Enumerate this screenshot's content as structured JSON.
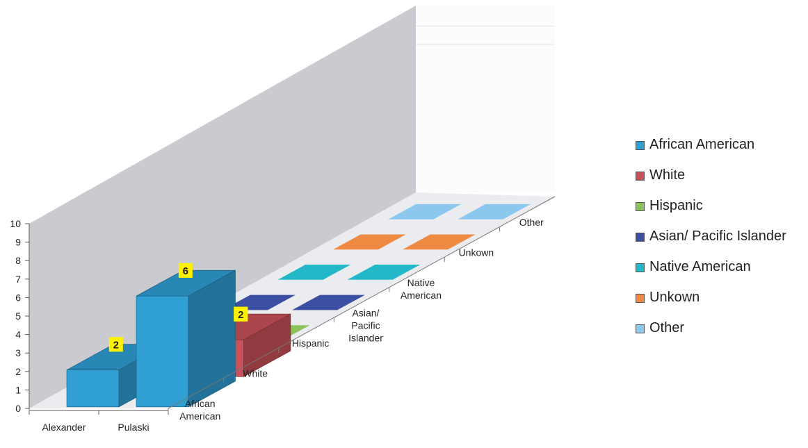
{
  "chart_data": {
    "type": "bar",
    "subtype": "3d-column",
    "title": "",
    "xlabel": "",
    "ylabel": "",
    "ylim": [
      0,
      10
    ],
    "yticks": [
      0,
      1,
      2,
      3,
      4,
      5,
      6,
      7,
      8,
      9,
      10
    ],
    "categories": [
      "Alexander",
      "Pulaski"
    ],
    "series": [
      {
        "name": "African American",
        "color": "#2f9fd4",
        "values": [
          2,
          6
        ],
        "axis_label": "African American"
      },
      {
        "name": "White",
        "color": "#c9525a",
        "values": [
          null,
          2
        ],
        "axis_label": "White"
      },
      {
        "name": "Hispanic",
        "color": "#8bc35a",
        "values": [
          null,
          null
        ],
        "axis_label": "Hispanic"
      },
      {
        "name": "Asian/ Pacific Islander",
        "color": "#3d4fa2",
        "values": [
          null,
          null
        ],
        "axis_label": "Asian/ Pacific Islander"
      },
      {
        "name": "Native American",
        "color": "#23b8c7",
        "values": [
          null,
          null
        ],
        "axis_label": "Native American"
      },
      {
        "name": "Unkown",
        "color": "#ef8a42",
        "values": [
          null,
          null
        ],
        "axis_label": "Unkown"
      },
      {
        "name": "Other",
        "color": "#8cc8ee",
        "values": [
          null,
          null
        ],
        "axis_label": "Other"
      }
    ],
    "data_labels": [
      {
        "series": "African American",
        "category": "Alexander",
        "text": "2"
      },
      {
        "series": "White",
        "category": "Pulaski",
        "text": "2"
      },
      {
        "series": "African American",
        "category": "Pulaski",
        "text": "6"
      },
      {
        "series": "White",
        "category": "Pulaski",
        "text": "2"
      }
    ],
    "legend": {
      "position": "right"
    }
  }
}
